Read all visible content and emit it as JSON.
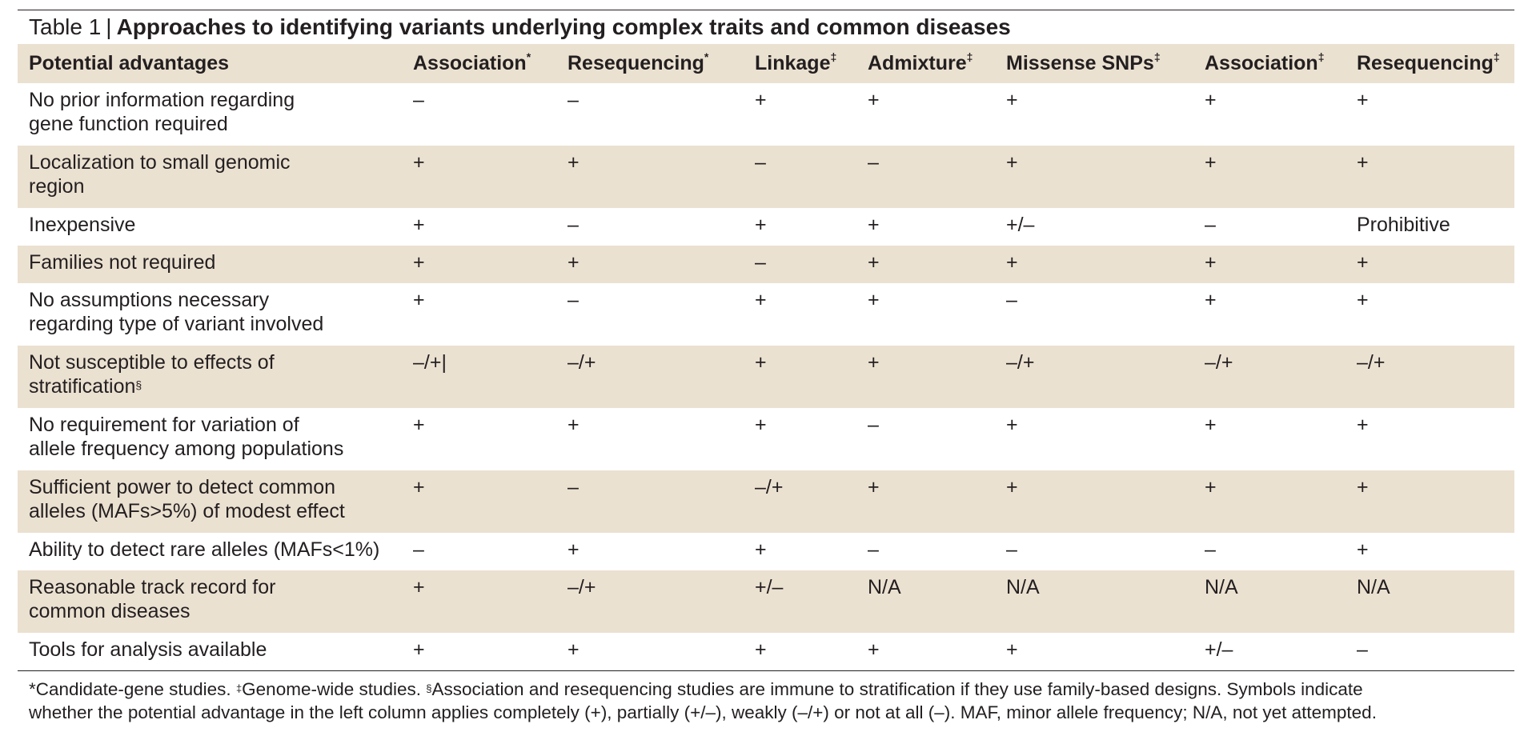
{
  "table": {
    "number_label": "Table 1",
    "separator": "|",
    "title": "Approaches to identifying variants underlying complex traits and common diseases",
    "headers": [
      {
        "text": "Potential advantages",
        "sup": ""
      },
      {
        "text": "Association",
        "sup": "*"
      },
      {
        "text": "Resequencing",
        "sup": "*"
      },
      {
        "text": "Linkage",
        "sup": "‡"
      },
      {
        "text": "Admixture",
        "sup": "‡"
      },
      {
        "text": "Missense SNPs",
        "sup": "‡"
      },
      {
        "text": "Association",
        "sup": "‡"
      },
      {
        "text": "Resequencing",
        "sup": "‡"
      }
    ],
    "rows": [
      {
        "advantage": [
          "No prior information regarding",
          "gene function required"
        ],
        "sup": "",
        "values": [
          "–",
          "–",
          "+",
          "+",
          "+",
          "+",
          "+"
        ]
      },
      {
        "advantage": [
          "Localization to small genomic",
          "region"
        ],
        "sup": "",
        "values": [
          "+",
          "+",
          "–",
          "–",
          "+",
          "+",
          "+"
        ]
      },
      {
        "advantage": [
          "Inexpensive"
        ],
        "sup": "",
        "values": [
          "+",
          "–",
          "+",
          "+",
          "+/–",
          "–",
          "Prohibitive"
        ]
      },
      {
        "advantage": [
          "Families not required"
        ],
        "sup": "",
        "values": [
          "+",
          "+",
          "–",
          "+",
          "+",
          "+",
          "+"
        ]
      },
      {
        "advantage": [
          "No assumptions necessary",
          "regarding type of variant involved"
        ],
        "sup": "",
        "values": [
          "+",
          "–",
          "+",
          "+",
          "–",
          "+",
          "+"
        ]
      },
      {
        "advantage": [
          "Not susceptible to effects of",
          "stratification"
        ],
        "sup": "§",
        "values": [
          "–/+|",
          "–/+",
          "+",
          "+",
          "–/+",
          "–/+",
          "–/+"
        ]
      },
      {
        "advantage": [
          "No requirement for variation of",
          "allele frequency among populations"
        ],
        "sup": "",
        "values": [
          "+",
          "+",
          "+",
          "–",
          "+",
          "+",
          "+"
        ]
      },
      {
        "advantage": [
          "Sufficient power to detect common",
          "alleles (MAFs>5%) of modest effect"
        ],
        "sup": "",
        "values": [
          "+",
          "–",
          "–/+",
          "+",
          "+",
          "+",
          "+"
        ]
      },
      {
        "advantage": [
          "Ability to detect rare alleles (MAFs<1%)"
        ],
        "sup": "",
        "values": [
          "–",
          "+",
          "+",
          "–",
          "–",
          "–",
          "+"
        ]
      },
      {
        "advantage": [
          "Reasonable track record for",
          "common diseases"
        ],
        "sup": "",
        "values": [
          "+",
          "–/+",
          "+/–",
          "N/A",
          "N/A",
          "N/A",
          "N/A"
        ]
      },
      {
        "advantage": [
          "Tools for analysis available"
        ],
        "sup": "",
        "values": [
          "+",
          "+",
          "+",
          "+",
          "+",
          "+/–",
          "–"
        ]
      }
    ],
    "footnote": {
      "mark1": "*",
      "text1": "Candidate-gene studies. ",
      "mark2": "‡",
      "text2": "Genome-wide studies. ",
      "mark3": "§",
      "text3": "Association and resequencing studies are immune to stratification if they use family-based designs. Symbols indicate",
      "line2": "whether the potential advantage in the left column applies completely (+), partially (+/–), weakly (–/+) or not at all (–). MAF, minor allele frequency; N/A, not yet attempted."
    }
  }
}
